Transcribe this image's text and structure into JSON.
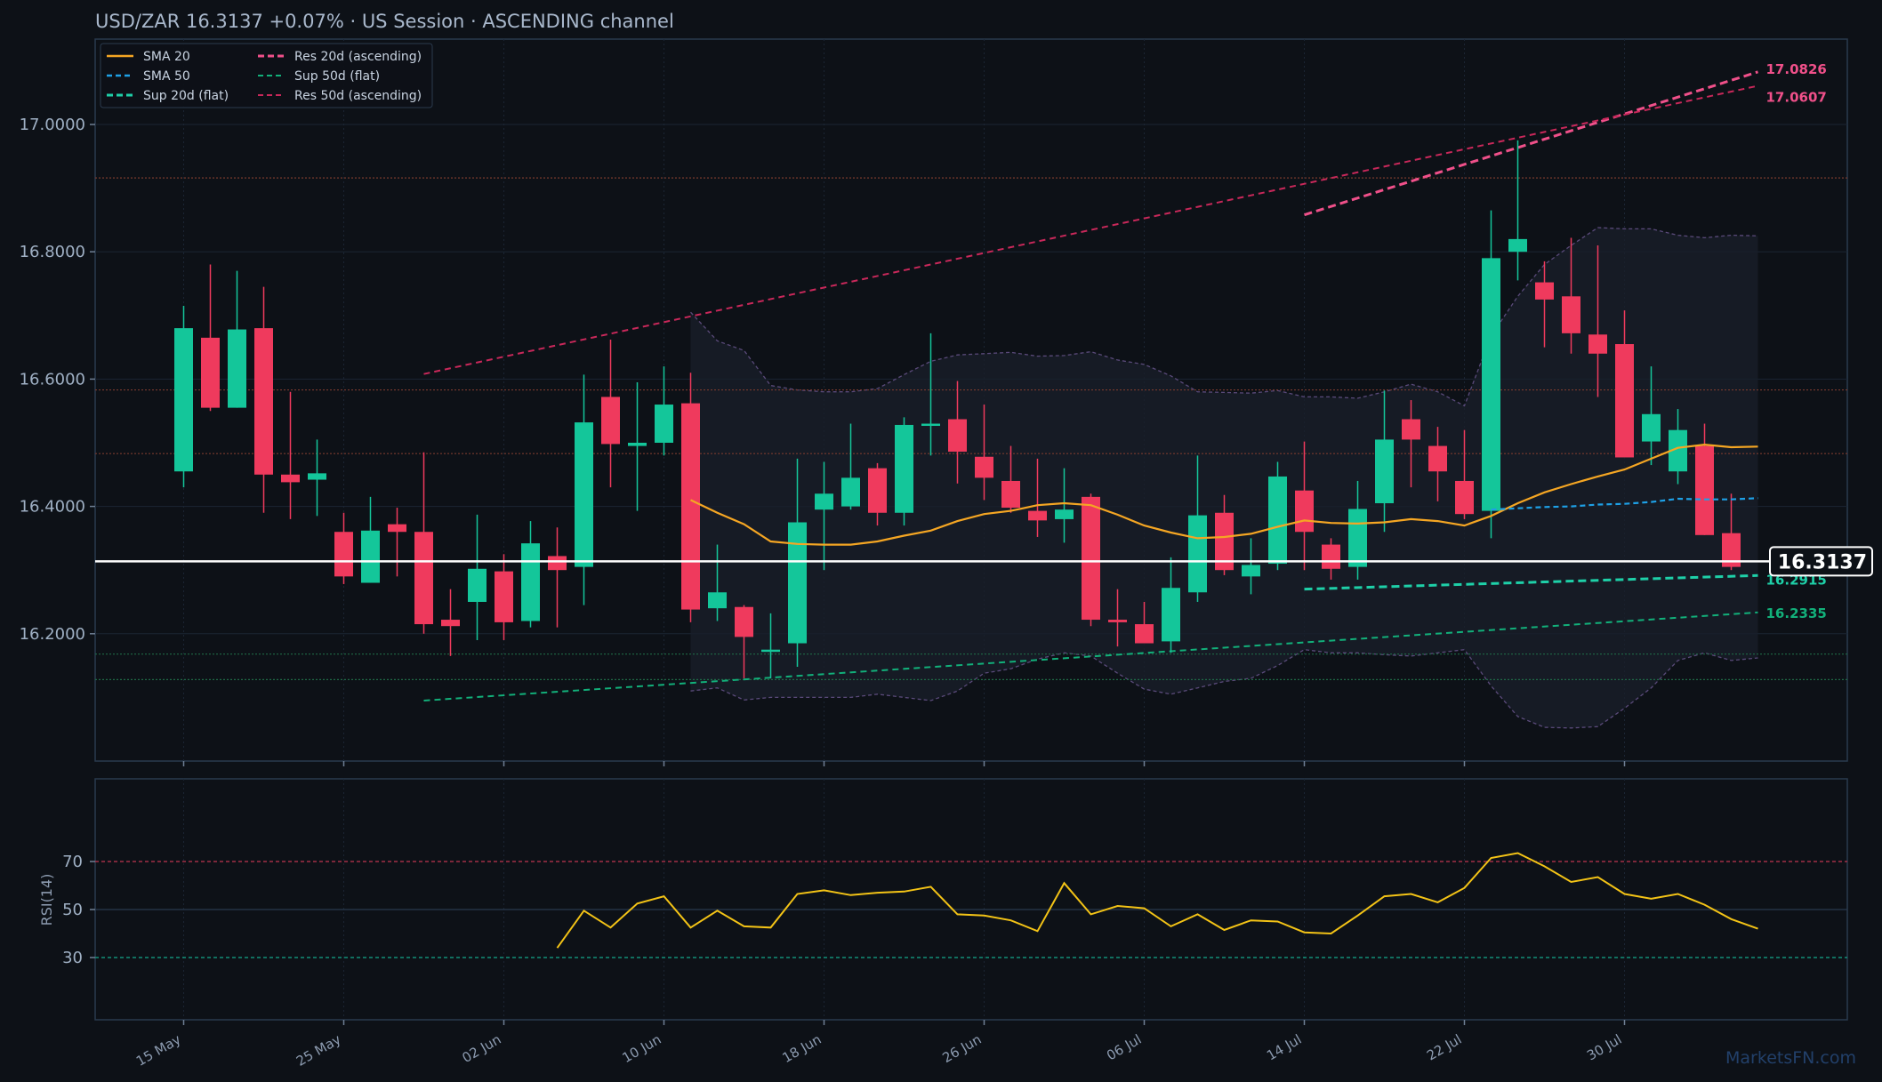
{
  "title": "USD/ZAR   16.3137   +0.07%  ·  US Session  ·  ASCENDING channel",
  "watermark": "MarketsFN.com",
  "colors": {
    "bg": "#0d1117",
    "up": "#14c69a",
    "down": "#ef3a5d",
    "sma20": "#f5a623",
    "sma50": "#1ea0e6",
    "sup20": "#1ed0a8",
    "sup50": "#12b07a",
    "res20": "#f0508a",
    "res50": "#c8285a",
    "rsi": "#f3c316",
    "price_line": "#ffffff"
  },
  "chart_data": {
    "type": "candlestick",
    "symbol": "USD/ZAR",
    "last_price": 16.3137,
    "last_price_label": "16.3137",
    "change": "+0.07%",
    "ylim": [
      16.0,
      17.1
    ],
    "y_ticks": [
      "16.2000",
      "16.4000",
      "16.6000",
      "16.8000",
      "17.0000"
    ],
    "x_ticks": [
      {
        "label": "15 May",
        "i": 0
      },
      {
        "label": "25 May",
        "i": 6
      },
      {
        "label": "02 Jun",
        "i": 12
      },
      {
        "label": "10 Jun",
        "i": 18
      },
      {
        "label": "18 Jun",
        "i": 24
      },
      {
        "label": "26 Jun",
        "i": 30
      },
      {
        "label": "06 Jul",
        "i": 36
      },
      {
        "label": "14 Jul",
        "i": 42
      },
      {
        "label": "22 Jul",
        "i": 48
      },
      {
        "label": "30 Jul",
        "i": 54
      }
    ],
    "candles": [
      [
        16.455,
        16.715,
        16.43,
        16.68
      ],
      [
        16.665,
        16.78,
        16.55,
        16.555
      ],
      [
        16.555,
        16.77,
        16.555,
        16.678
      ],
      [
        16.68,
        16.745,
        16.39,
        16.45
      ],
      [
        16.45,
        16.58,
        16.38,
        16.438
      ],
      [
        16.442,
        16.505,
        16.385,
        16.452
      ],
      [
        16.36,
        16.39,
        16.278,
        16.29
      ],
      [
        16.28,
        16.415,
        16.28,
        16.362
      ],
      [
        16.372,
        16.398,
        16.29,
        16.36
      ],
      [
        16.36,
        16.485,
        16.2,
        16.215
      ],
      [
        16.222,
        16.27,
        16.165,
        16.212
      ],
      [
        16.25,
        16.387,
        16.19,
        16.302
      ],
      [
        16.298,
        16.325,
        16.19,
        16.218
      ],
      [
        16.22,
        16.377,
        16.21,
        16.342
      ],
      [
        16.322,
        16.367,
        16.21,
        16.3
      ],
      [
        16.305,
        16.607,
        16.245,
        16.532
      ],
      [
        16.572,
        16.662,
        16.43,
        16.498
      ],
      [
        16.495,
        16.595,
        16.393,
        16.5
      ],
      [
        16.5,
        16.62,
        16.48,
        16.56
      ],
      [
        16.562,
        16.61,
        16.218,
        16.238
      ],
      [
        16.24,
        16.34,
        16.22,
        16.265
      ],
      [
        16.242,
        16.245,
        16.13,
        16.195
      ],
      [
        16.175,
        16.232,
        16.13,
        16.175
      ],
      [
        16.185,
        16.475,
        16.148,
        16.375
      ],
      [
        16.395,
        16.47,
        16.3,
        16.42
      ],
      [
        16.4,
        16.53,
        16.395,
        16.445
      ],
      [
        16.46,
        16.468,
        16.37,
        16.39
      ],
      [
        16.39,
        16.54,
        16.37,
        16.528
      ],
      [
        16.53,
        16.672,
        16.48,
        16.53
      ],
      [
        16.537,
        16.597,
        16.436,
        16.486
      ],
      [
        16.478,
        16.56,
        16.41,
        16.445
      ],
      [
        16.44,
        16.495,
        16.39,
        16.398
      ],
      [
        16.393,
        16.475,
        16.352,
        16.378
      ],
      [
        16.38,
        16.46,
        16.343,
        16.395
      ],
      [
        16.415,
        16.42,
        16.212,
        16.222
      ],
      [
        16.222,
        16.27,
        16.18,
        16.218
      ],
      [
        16.215,
        16.25,
        16.19,
        16.185
      ],
      [
        16.188,
        16.32,
        16.17,
        16.272
      ],
      [
        16.265,
        16.48,
        16.25,
        16.386
      ],
      [
        16.39,
        16.418,
        16.292,
        16.3
      ],
      [
        16.29,
        16.35,
        16.262,
        16.308
      ],
      [
        16.31,
        16.47,
        16.3,
        16.447
      ],
      [
        16.425,
        16.502,
        16.3,
        16.36
      ],
      [
        16.34,
        16.35,
        16.285,
        16.302
      ],
      [
        16.305,
        16.44,
        16.285,
        16.396
      ],
      [
        16.405,
        16.582,
        16.36,
        16.505
      ],
      [
        16.537,
        16.567,
        16.43,
        16.505
      ],
      [
        16.495,
        16.525,
        16.408,
        16.455
      ],
      [
        16.44,
        16.52,
        16.38,
        16.388
      ],
      [
        16.393,
        16.865,
        16.35,
        16.79
      ],
      [
        16.8,
        16.975,
        16.755,
        16.82
      ],
      [
        16.752,
        16.785,
        16.65,
        16.725
      ],
      [
        16.73,
        16.822,
        16.64,
        16.672
      ],
      [
        16.67,
        16.81,
        16.572,
        16.64
      ],
      [
        16.655,
        16.708,
        16.478,
        16.477
      ],
      [
        16.502,
        16.62,
        16.465,
        16.545
      ],
      [
        16.455,
        16.553,
        16.435,
        16.52
      ],
      [
        16.495,
        16.53,
        16.355,
        16.355
      ],
      [
        16.358,
        16.42,
        16.3,
        16.305
      ]
    ],
    "sma20": [
      [
        19,
        16.41
      ],
      [
        20,
        16.39
      ],
      [
        21,
        16.372
      ],
      [
        22,
        16.345
      ],
      [
        23,
        16.341
      ],
      [
        24,
        16.34
      ],
      [
        25,
        16.34
      ],
      [
        26,
        16.345
      ],
      [
        27,
        16.354
      ],
      [
        28,
        16.362
      ],
      [
        29,
        16.377
      ],
      [
        30,
        16.388
      ],
      [
        31,
        16.393
      ],
      [
        32,
        16.402
      ],
      [
        33,
        16.405
      ],
      [
        34,
        16.402
      ],
      [
        35,
        16.387
      ],
      [
        36,
        16.37
      ],
      [
        37,
        16.359
      ],
      [
        38,
        16.35
      ],
      [
        39,
        16.352
      ],
      [
        40,
        16.357
      ],
      [
        41,
        16.368
      ],
      [
        42,
        16.378
      ],
      [
        43,
        16.374
      ],
      [
        44,
        16.373
      ],
      [
        45,
        16.375
      ],
      [
        46,
        16.38
      ],
      [
        47,
        16.377
      ],
      [
        48,
        16.37
      ],
      [
        49,
        16.385
      ],
      [
        50,
        16.405
      ],
      [
        51,
        16.422
      ],
      [
        52,
        16.435
      ],
      [
        53,
        16.447
      ],
      [
        54,
        16.458
      ],
      [
        55,
        16.475
      ],
      [
        56,
        16.492
      ],
      [
        57,
        16.497
      ],
      [
        58,
        16.493
      ],
      [
        59,
        16.494
      ]
    ],
    "sma50": [
      [
        49,
        16.395
      ],
      [
        50,
        16.397
      ],
      [
        51,
        16.399
      ],
      [
        52,
        16.4
      ],
      [
        53,
        16.403
      ],
      [
        54,
        16.404
      ],
      [
        55,
        16.407
      ],
      [
        56,
        16.412
      ],
      [
        57,
        16.411
      ],
      [
        58,
        16.411
      ],
      [
        59,
        16.413
      ]
    ],
    "bollinger_upper": [
      [
        19,
        16.705
      ],
      [
        20,
        16.66
      ],
      [
        21,
        16.645
      ],
      [
        22,
        16.59
      ],
      [
        23,
        16.583
      ],
      [
        24,
        16.58
      ],
      [
        25,
        16.58
      ],
      [
        26,
        16.585
      ],
      [
        27,
        16.607
      ],
      [
        28,
        16.628
      ],
      [
        29,
        16.638
      ],
      [
        30,
        16.64
      ],
      [
        31,
        16.642
      ],
      [
        32,
        16.636
      ],
      [
        33,
        16.637
      ],
      [
        34,
        16.643
      ],
      [
        35,
        16.63
      ],
      [
        36,
        16.623
      ],
      [
        37,
        16.605
      ],
      [
        38,
        16.58
      ],
      [
        39,
        16.579
      ],
      [
        40,
        16.578
      ],
      [
        41,
        16.582
      ],
      [
        42,
        16.572
      ],
      [
        43,
        16.572
      ],
      [
        44,
        16.57
      ],
      [
        45,
        16.58
      ],
      [
        46,
        16.592
      ],
      [
        47,
        16.58
      ],
      [
        48,
        16.558
      ],
      [
        49,
        16.668
      ],
      [
        50,
        16.73
      ],
      [
        51,
        16.78
      ],
      [
        52,
        16.81
      ],
      [
        53,
        16.838
      ],
      [
        54,
        16.836
      ],
      [
        55,
        16.836
      ],
      [
        56,
        16.826
      ],
      [
        57,
        16.822
      ],
      [
        58,
        16.826
      ],
      [
        59,
        16.825
      ]
    ],
    "bollinger_lower": [
      [
        19,
        16.11
      ],
      [
        20,
        16.115
      ],
      [
        21,
        16.096
      ],
      [
        22,
        16.1
      ],
      [
        23,
        16.1
      ],
      [
        24,
        16.1
      ],
      [
        25,
        16.1
      ],
      [
        26,
        16.105
      ],
      [
        27,
        16.1
      ],
      [
        28,
        16.095
      ],
      [
        29,
        16.11
      ],
      [
        30,
        16.138
      ],
      [
        31,
        16.145
      ],
      [
        32,
        16.16
      ],
      [
        33,
        16.17
      ],
      [
        34,
        16.165
      ],
      [
        35,
        16.138
      ],
      [
        36,
        16.113
      ],
      [
        37,
        16.105
      ],
      [
        38,
        16.115
      ],
      [
        39,
        16.125
      ],
      [
        40,
        16.13
      ],
      [
        41,
        16.15
      ],
      [
        42,
        16.175
      ],
      [
        43,
        16.17
      ],
      [
        44,
        16.17
      ],
      [
        45,
        16.167
      ],
      [
        46,
        16.165
      ],
      [
        47,
        16.17
      ],
      [
        48,
        16.175
      ],
      [
        49,
        16.118
      ],
      [
        50,
        16.07
      ],
      [
        51,
        16.053
      ],
      [
        52,
        16.052
      ],
      [
        53,
        16.054
      ],
      [
        54,
        16.083
      ],
      [
        55,
        16.115
      ],
      [
        56,
        16.158
      ],
      [
        57,
        16.17
      ],
      [
        58,
        16.158
      ],
      [
        59,
        16.162
      ]
    ],
    "trendlines": [
      {
        "name": "Res 20d (ascending)",
        "from": [
          42,
          16.858
        ],
        "to": [
          59,
          17.0826
        ],
        "label": "17.0826"
      },
      {
        "name": "Res 50d (ascending)",
        "from": [
          9,
          16.608
        ],
        "to": [
          59,
          17.0607
        ],
        "label": "17.0607"
      },
      {
        "name": "Sup 20d (flat)",
        "from": [
          42,
          16.27
        ],
        "to": [
          59,
          16.2915
        ],
        "label": "16.2915"
      },
      {
        "name": "Sup 50d (flat)",
        "from": [
          9,
          16.095
        ],
        "to": [
          59,
          16.2335
        ],
        "label": "16.2335"
      }
    ],
    "horizontal_levels": [
      {
        "value": 16.916,
        "color": "#7a3a2e"
      },
      {
        "value": 16.583,
        "color": "#7a3a2e"
      },
      {
        "value": 16.483,
        "color": "#7a3a2e"
      },
      {
        "value": 16.168,
        "color": "#1f6a46"
      },
      {
        "value": 16.128,
        "color": "#1f6a46"
      }
    ],
    "legend": {
      "col1": [
        "SMA 20",
        "SMA 50",
        "Sup 20d (flat)"
      ],
      "col2": [
        "Res 20d (ascending)",
        "Sup 50d (flat)",
        "Res 50d (ascending)"
      ]
    },
    "rsi": {
      "label": "RSI(14)",
      "ylim": [
        0,
        100
      ],
      "levels": [
        30,
        50,
        70
      ],
      "ticks": [
        "30",
        "50",
        "70"
      ],
      "values": [
        [
          14,
          34
        ],
        [
          15,
          49.5
        ],
        [
          16,
          42.5
        ],
        [
          17,
          52.5
        ],
        [
          18,
          55.5
        ],
        [
          19,
          42.5
        ],
        [
          20,
          49.5
        ],
        [
          21,
          43
        ],
        [
          22,
          42.5
        ],
        [
          23,
          56.5
        ],
        [
          24,
          58
        ],
        [
          25,
          56
        ],
        [
          26,
          57
        ],
        [
          27,
          57.5
        ],
        [
          28,
          59.5
        ],
        [
          29,
          48
        ],
        [
          30,
          47.5
        ],
        [
          31,
          45.5
        ],
        [
          32,
          41
        ],
        [
          33,
          61
        ],
        [
          34,
          48
        ],
        [
          35,
          51.5
        ],
        [
          36,
          50.5
        ],
        [
          37,
          43
        ],
        [
          38,
          48
        ],
        [
          39,
          41.5
        ],
        [
          40,
          45.5
        ],
        [
          41,
          45
        ],
        [
          42,
          40.5
        ],
        [
          43,
          40
        ],
        [
          44,
          47.5
        ],
        [
          45,
          55.5
        ],
        [
          46,
          56.5
        ],
        [
          47,
          53
        ],
        [
          48,
          59
        ],
        [
          49,
          71.5
        ],
        [
          50,
          73.5
        ],
        [
          51,
          68
        ],
        [
          52,
          61.5
        ],
        [
          53,
          63.5
        ],
        [
          54,
          56.5
        ],
        [
          55,
          54.5
        ],
        [
          56,
          56.5
        ],
        [
          57,
          52
        ],
        [
          58,
          46
        ],
        [
          59,
          42
        ]
      ]
    }
  }
}
